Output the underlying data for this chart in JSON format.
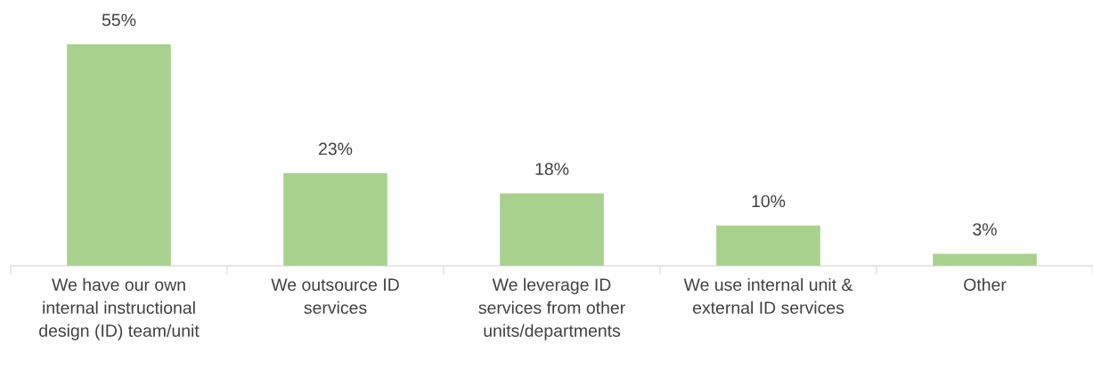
{
  "chart_data": {
    "type": "bar",
    "categories": [
      "We have our own\ninternal instructional\ndesign (ID) team/unit",
      "We outsource ID\nservices",
      "We leverage ID\nservices from other\nunits/departments",
      "We use internal unit &\nexternal ID services",
      "Other"
    ],
    "values": [
      55,
      23,
      18,
      10,
      3
    ],
    "value_labels": [
      "55%",
      "23%",
      "18%",
      "10%",
      "3%"
    ],
    "color": "#a9d18e",
    "grid": false,
    "legend": false
  }
}
